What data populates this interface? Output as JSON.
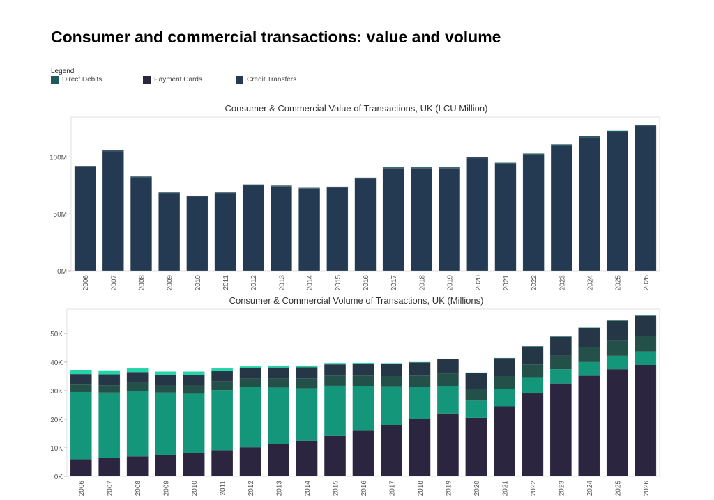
{
  "page_title": "Consumer and commercial transactions: value and volume",
  "legend": {
    "title": "Legend",
    "items": [
      {
        "label": "Direct Debits",
        "color": "#1e5a5a"
      },
      {
        "label": "Payment Cards",
        "color": "#2b2540"
      },
      {
        "label": "Credit Transfers",
        "color": "#243a52"
      }
    ]
  },
  "chart_data": [
    {
      "type": "bar",
      "title": "Consumer & Commercial Value of Transactions, UK (LCU Million)",
      "categories": [
        "2006",
        "2007",
        "2008",
        "2009",
        "2010",
        "2011",
        "2012",
        "2013",
        "2014",
        "2015",
        "2016",
        "2017",
        "2018",
        "2019",
        "2020",
        "2021",
        "2022",
        "2023",
        "2024",
        "2025",
        "2026"
      ],
      "totals": [
        92,
        106,
        83,
        69,
        66,
        69,
        76,
        75,
        73,
        74,
        82,
        91,
        91,
        91,
        100,
        95,
        103,
        111,
        118,
        123,
        128
      ],
      "series": [
        {
          "name": "Credit Transfers",
          "color": "#243a52",
          "values": [
            91.2,
            104.9,
            82.1,
            68.2,
            65.3,
            68.2,
            75.1,
            74.1,
            72.2,
            73.2,
            81.1,
            89.9,
            89.9,
            89.9,
            98.9,
            93.8,
            101.8,
            109.8,
            116.7,
            121.7,
            126.7
          ]
        },
        {
          "name": "Payment Cards",
          "color": "#2b2540",
          "values": [
            0.3,
            0.4,
            0.3,
            0.3,
            0.3,
            0.3,
            0.3,
            0.3,
            0.3,
            0.3,
            0.3,
            0.4,
            0.4,
            0.4,
            0.4,
            0.4,
            0.4,
            0.4,
            0.4,
            0.4,
            0.4
          ]
        },
        {
          "name": "Direct Debits",
          "color": "#1e5a5a",
          "values": [
            0.5,
            0.7,
            0.6,
            0.5,
            0.4,
            0.5,
            0.6,
            0.6,
            0.5,
            0.5,
            0.6,
            0.7,
            0.7,
            0.7,
            0.7,
            0.8,
            0.8,
            0.8,
            0.9,
            0.9,
            0.9
          ]
        }
      ],
      "yticks": [
        {
          "value": 0,
          "label": "0M"
        },
        {
          "value": 50,
          "label": "50M"
        },
        {
          "value": 100,
          "label": "100M"
        }
      ],
      "ylim": [
        0,
        135
      ],
      "grid": false
    },
    {
      "type": "bar",
      "title": "Consumer & Commercial Volume of Transactions, UK (Millions)",
      "categories": [
        "2006",
        "2007",
        "2008",
        "2009",
        "2010",
        "2011",
        "2012",
        "2013",
        "2014",
        "2015",
        "2016",
        "2017",
        "2018",
        "2019",
        "2020",
        "2021",
        "2022",
        "2023",
        "2024",
        "2025",
        "2026"
      ],
      "series": [
        {
          "name": "Payment Cards",
          "color": "#2b2540",
          "values": [
            6000,
            6500,
            7000,
            7500,
            8200,
            9200,
            10200,
            11300,
            12500,
            14200,
            16000,
            18000,
            20000,
            22000,
            20500,
            24500,
            29000,
            32500,
            35200,
            37500,
            39000
          ]
        },
        {
          "name": "",
          "color": "#13967a",
          "values": [
            23500,
            22800,
            22800,
            21800,
            20700,
            21000,
            21000,
            19800,
            18300,
            17500,
            15600,
            13300,
            11200,
            9500,
            6000,
            6200,
            5500,
            5000,
            4800,
            4700,
            4700
          ]
        },
        {
          "name": "",
          "color": "#235048",
          "values": [
            2600,
            2600,
            3000,
            2500,
            2900,
            3100,
            3000,
            3100,
            3500,
            3600,
            3700,
            3800,
            4100,
            4400,
            4200,
            4400,
            4700,
            4700,
            5200,
            5400,
            5500
          ]
        },
        {
          "name": "",
          "color": "#253646",
          "values": [
            3700,
            3800,
            3700,
            3800,
            3600,
            3500,
            3600,
            3900,
            3900,
            3900,
            4100,
            4300,
            4600,
            5200,
            5600,
            6300,
            6300,
            6700,
            6800,
            6900,
            7000
          ]
        },
        {
          "name": "",
          "color": "#22d4a8",
          "values": [
            1400,
            1200,
            1300,
            1100,
            1300,
            1000,
            700,
            700,
            600,
            500,
            350,
            250,
            150,
            100,
            80,
            80,
            80,
            80,
            80,
            80,
            80
          ]
        }
      ],
      "yticks": [
        {
          "value": 0,
          "label": "0K"
        },
        {
          "value": 10000,
          "label": "10K"
        },
        {
          "value": 20000,
          "label": "20K"
        },
        {
          "value": 30000,
          "label": "30K"
        },
        {
          "value": 40000,
          "label": "40K"
        },
        {
          "value": 50000,
          "label": "50K"
        }
      ],
      "ylim": [
        0,
        58500
      ],
      "grid": false
    }
  ]
}
